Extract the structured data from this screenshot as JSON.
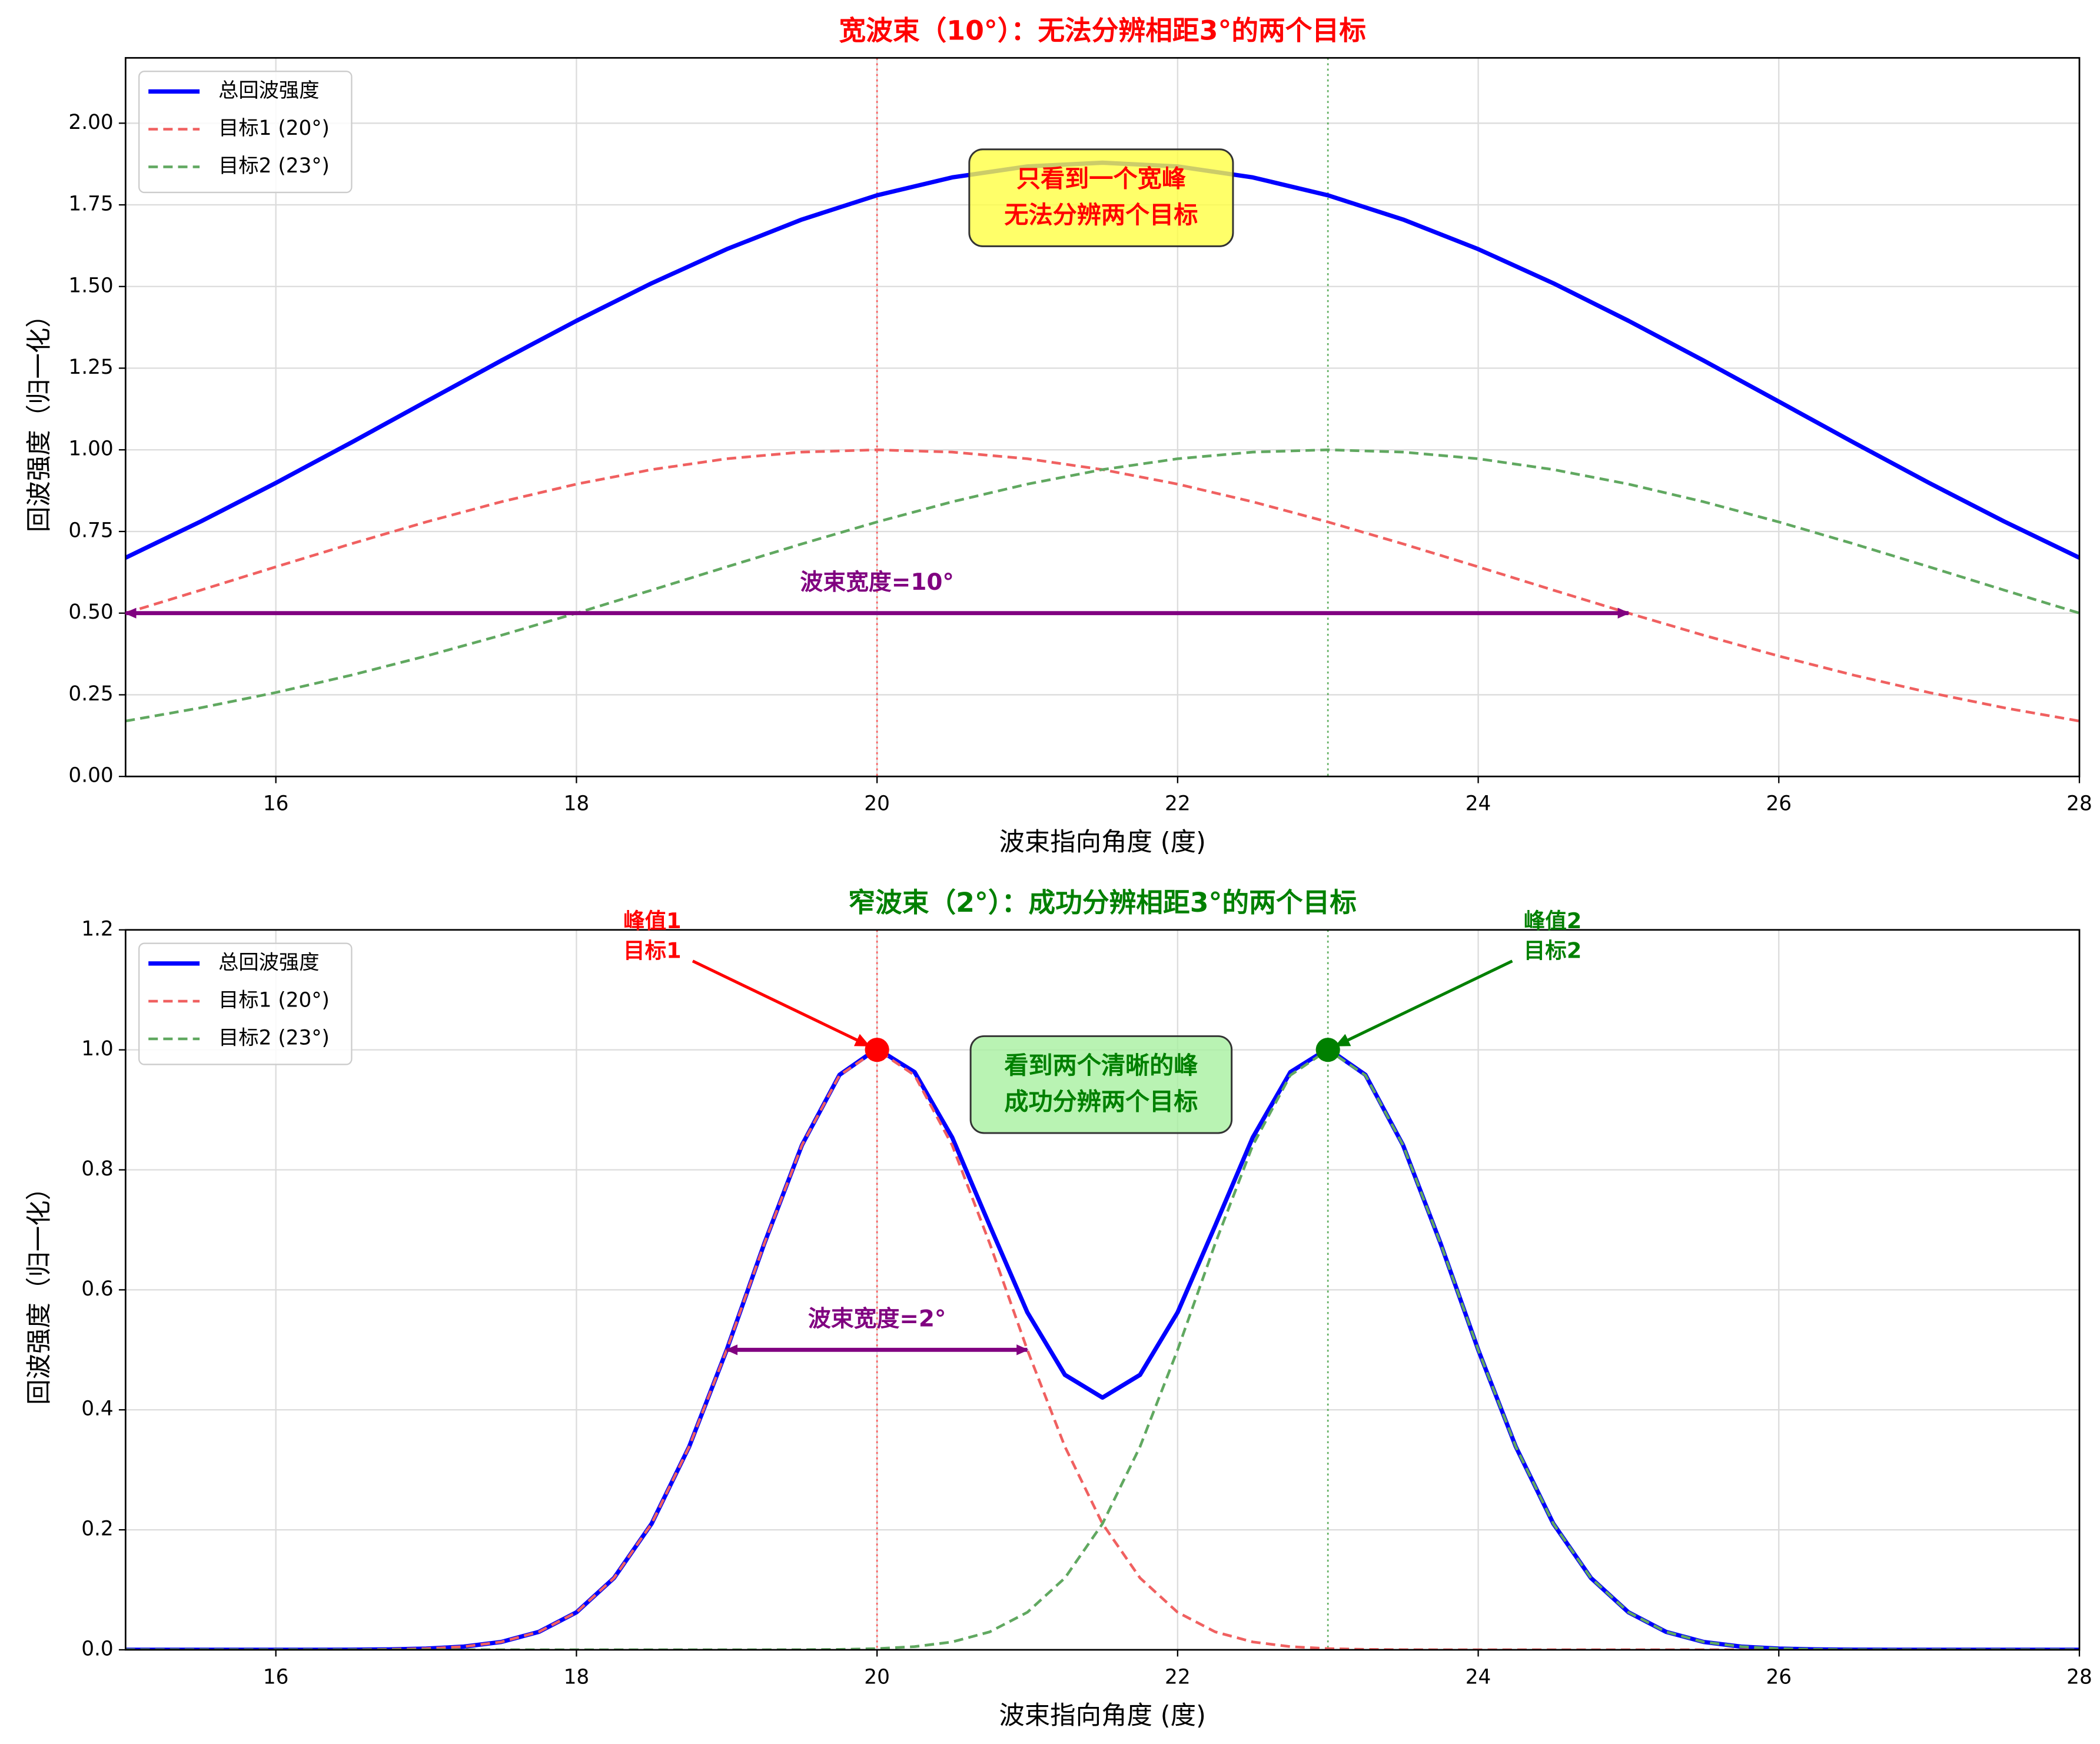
{
  "chart_data": [
    {
      "type": "line",
      "title": "宽波束（10°）：无法分辨相距3°的两个目标",
      "title_color": "#ff0000",
      "xlabel": "波束指向角度 (度)",
      "ylabel": "回波强度（归一化）",
      "x": [
        15,
        15.5,
        16,
        16.5,
        17,
        17.5,
        18,
        18.5,
        19,
        19.5,
        20,
        20.5,
        21,
        21.5,
        22,
        22.5,
        23,
        23.5,
        24,
        24.5,
        25,
        25.5,
        26,
        26.5,
        27,
        27.5,
        28
      ],
      "series": [
        {
          "name": "总回波强度",
          "color": "#0000ff",
          "style": "solid",
          "values": [
            0.6696,
            0.7806,
            0.8987,
            1.0219,
            1.1478,
            1.2732,
            1.395,
            1.5099,
            1.6144,
            1.7051,
            1.7792,
            1.834,
            1.8677,
            1.879,
            1.8677,
            1.834,
            1.7792,
            1.7051,
            1.6144,
            1.5099,
            1.395,
            1.2732,
            1.1478,
            1.0219,
            0.8987,
            0.7806,
            0.6696
          ]
        },
        {
          "name": "目标1 (20°)",
          "color": "#f06060",
          "style": "dashed",
          "values": [
            0.5,
            0.5704,
            0.6417,
            0.712,
            0.7792,
            0.8409,
            0.895,
            0.9395,
            0.9727,
            0.9931,
            1,
            0.9931,
            0.9727,
            0.9395,
            0.895,
            0.8409,
            0.7792,
            0.712,
            0.6417,
            0.5704,
            0.5,
            0.4323,
            0.3686,
            0.3099,
            0.257,
            0.2102,
            0.1696
          ]
        },
        {
          "name": "目标2 (23°)",
          "color": "#60a860",
          "style": "dashed",
          "values": [
            0.1696,
            0.2102,
            0.257,
            0.3099,
            0.3686,
            0.4323,
            0.5,
            0.5704,
            0.6417,
            0.712,
            0.7792,
            0.8409,
            0.895,
            0.9395,
            0.9727,
            0.9931,
            1,
            0.9931,
            0.9727,
            0.9395,
            0.895,
            0.8409,
            0.7792,
            0.712,
            0.6417,
            0.5704,
            0.5
          ]
        }
      ],
      "xlim": [
        15,
        28
      ],
      "xticks": [
        16,
        18,
        20,
        22,
        24,
        26,
        28
      ],
      "ylim": [
        0,
        2.2
      ],
      "yticks": [
        {
          "value": 0,
          "label": "0.00"
        },
        {
          "value": 0.25,
          "label": "0.25"
        },
        {
          "value": 0.5,
          "label": "0.50"
        },
        {
          "value": 0.75,
          "label": "0.75"
        },
        {
          "value": 1,
          "label": "1.00"
        },
        {
          "value": 1.25,
          "label": "1.25"
        },
        {
          "value": 1.5,
          "label": "1.50"
        },
        {
          "value": 1.75,
          "label": "1.75"
        },
        {
          "value": 2,
          "label": "2.00"
        }
      ],
      "grid": true,
      "legend": "upper-left",
      "vlines": [
        {
          "x": 20,
          "color": "#ff4040"
        },
        {
          "x": 23,
          "color": "#40a040"
        }
      ],
      "beam_arrow": {
        "label": "波束宽度=10°",
        "from": 15,
        "to": 25,
        "y": 0.5,
        "color": "#800080"
      },
      "note": {
        "lines": [
          "只看到一个宽峰",
          "无法分辨两个目标"
        ],
        "color": "#ff0000",
        "box_color": "#ffff44"
      }
    },
    {
      "type": "line",
      "title": "窄波束（2°）：成功分辨相距3°的两个目标",
      "title_color": "#008000",
      "xlabel": "波束指向角度 (度)",
      "ylabel": "回波强度（归一化）",
      "x": [
        15,
        15.25,
        15.5,
        15.75,
        16,
        16.25,
        16.5,
        16.75,
        17,
        17.25,
        17.5,
        17.75,
        18,
        18.25,
        18.5,
        18.75,
        19,
        19.25,
        19.5,
        19.75,
        20,
        20.25,
        20.5,
        20.75,
        21,
        21.25,
        21.5,
        21.75,
        22,
        22.25,
        22.5,
        22.75,
        23,
        23.25,
        23.5,
        23.75,
        24,
        24.25,
        24.5,
        24.75,
        25,
        25.25,
        25.5,
        25.75,
        26,
        26.25,
        26.5,
        26.75,
        27,
        27.25,
        27.5,
        27.75,
        28
      ],
      "series": [
        {
          "name": "总回波强度",
          "color": "#0000ff",
          "style": "solid",
          "values": [
            0,
            0,
            0,
            0,
            0,
            0.0001,
            0.0002,
            0.0007,
            0.002,
            0.0053,
            0.0131,
            0.0299,
            0.0625,
            0.1197,
            0.2102,
            0.3386,
            0.5,
            0.6772,
            0.8411,
            0.9583,
            1.002,
            0.9629,
            0.854,
            0.707,
            0.5625,
            0.4583,
            0.4204,
            0.4583,
            0.5625,
            0.707,
            0.854,
            0.9629,
            1.002,
            0.9583,
            0.8411,
            0.6772,
            0.5,
            0.3386,
            0.2102,
            0.1197,
            0.0625,
            0.0299,
            0.0131,
            0.0053,
            0.002,
            0.0007,
            0.0002,
            0.0001,
            0,
            0,
            0,
            0,
            0
          ]
        },
        {
          "name": "目标1 (20°)",
          "color": "#f06060",
          "style": "dashed",
          "values": [
            0,
            0,
            0,
            0,
            0,
            0.0001,
            0.0002,
            0.0007,
            0.002,
            0.0053,
            0.0131,
            0.0299,
            0.0625,
            0.1197,
            0.2102,
            0.3386,
            0.5,
            0.6771,
            0.8409,
            0.9576,
            1,
            0.9576,
            0.8409,
            0.6771,
            0.5,
            0.3386,
            0.2102,
            0.1197,
            0.0625,
            0.0299,
            0.0131,
            0.0053,
            0.002,
            0.0007,
            0.0002,
            0.0001,
            0,
            0,
            0,
            0,
            0,
            0,
            0,
            0,
            0,
            0,
            0,
            0,
            0,
            0,
            0,
            0,
            0
          ]
        },
        {
          "name": "目标2 (23°)",
          "color": "#60a860",
          "style": "dashed",
          "values": [
            0,
            0,
            0,
            0,
            0,
            0,
            0,
            0,
            0,
            0,
            0,
            0,
            0,
            0,
            0,
            0,
            0,
            0.0001,
            0.0002,
            0.0007,
            0.002,
            0.0053,
            0.0131,
            0.0299,
            0.0625,
            0.1197,
            0.2102,
            0.3386,
            0.5,
            0.6771,
            0.8409,
            0.9576,
            1,
            0.9576,
            0.8409,
            0.6771,
            0.5,
            0.3386,
            0.2102,
            0.1197,
            0.0625,
            0.0299,
            0.0131,
            0.0053,
            0.002,
            0.0007,
            0.0002,
            0.0001,
            0,
            0,
            0,
            0,
            0
          ]
        }
      ],
      "xlim": [
        15,
        28
      ],
      "xticks": [
        16,
        18,
        20,
        22,
        24,
        26,
        28
      ],
      "ylim": [
        0,
        1.2
      ],
      "yticks": [
        {
          "value": 0,
          "label": "0.0"
        },
        {
          "value": 0.2,
          "label": "0.2"
        },
        {
          "value": 0.4,
          "label": "0.4"
        },
        {
          "value": 0.6,
          "label": "0.6"
        },
        {
          "value": 0.8,
          "label": "0.8"
        },
        {
          "value": 1,
          "label": "1.0"
        },
        {
          "value": 1.2,
          "label": "1.2"
        }
      ],
      "grid": true,
      "legend": "upper-left",
      "vlines": [
        {
          "x": 20,
          "color": "#ff4040"
        },
        {
          "x": 23,
          "color": "#40a040"
        }
      ],
      "beam_arrow": {
        "label": "波束宽度=2°",
        "from": 19,
        "to": 21,
        "y": 0.5,
        "color": "#800080"
      },
      "peaks": [
        {
          "lines": [
            "峰值1",
            "目标1"
          ],
          "x": 20,
          "y": 1,
          "color": "#ff0000"
        },
        {
          "lines": [
            "峰值2",
            "目标2"
          ],
          "x": 23,
          "y": 1,
          "color": "#008000"
        }
      ],
      "note": {
        "lines": [
          "看到两个清晰的峰",
          "成功分辨两个目标"
        ],
        "color": "#008000",
        "box_color": "#a8f0a0"
      }
    }
  ]
}
